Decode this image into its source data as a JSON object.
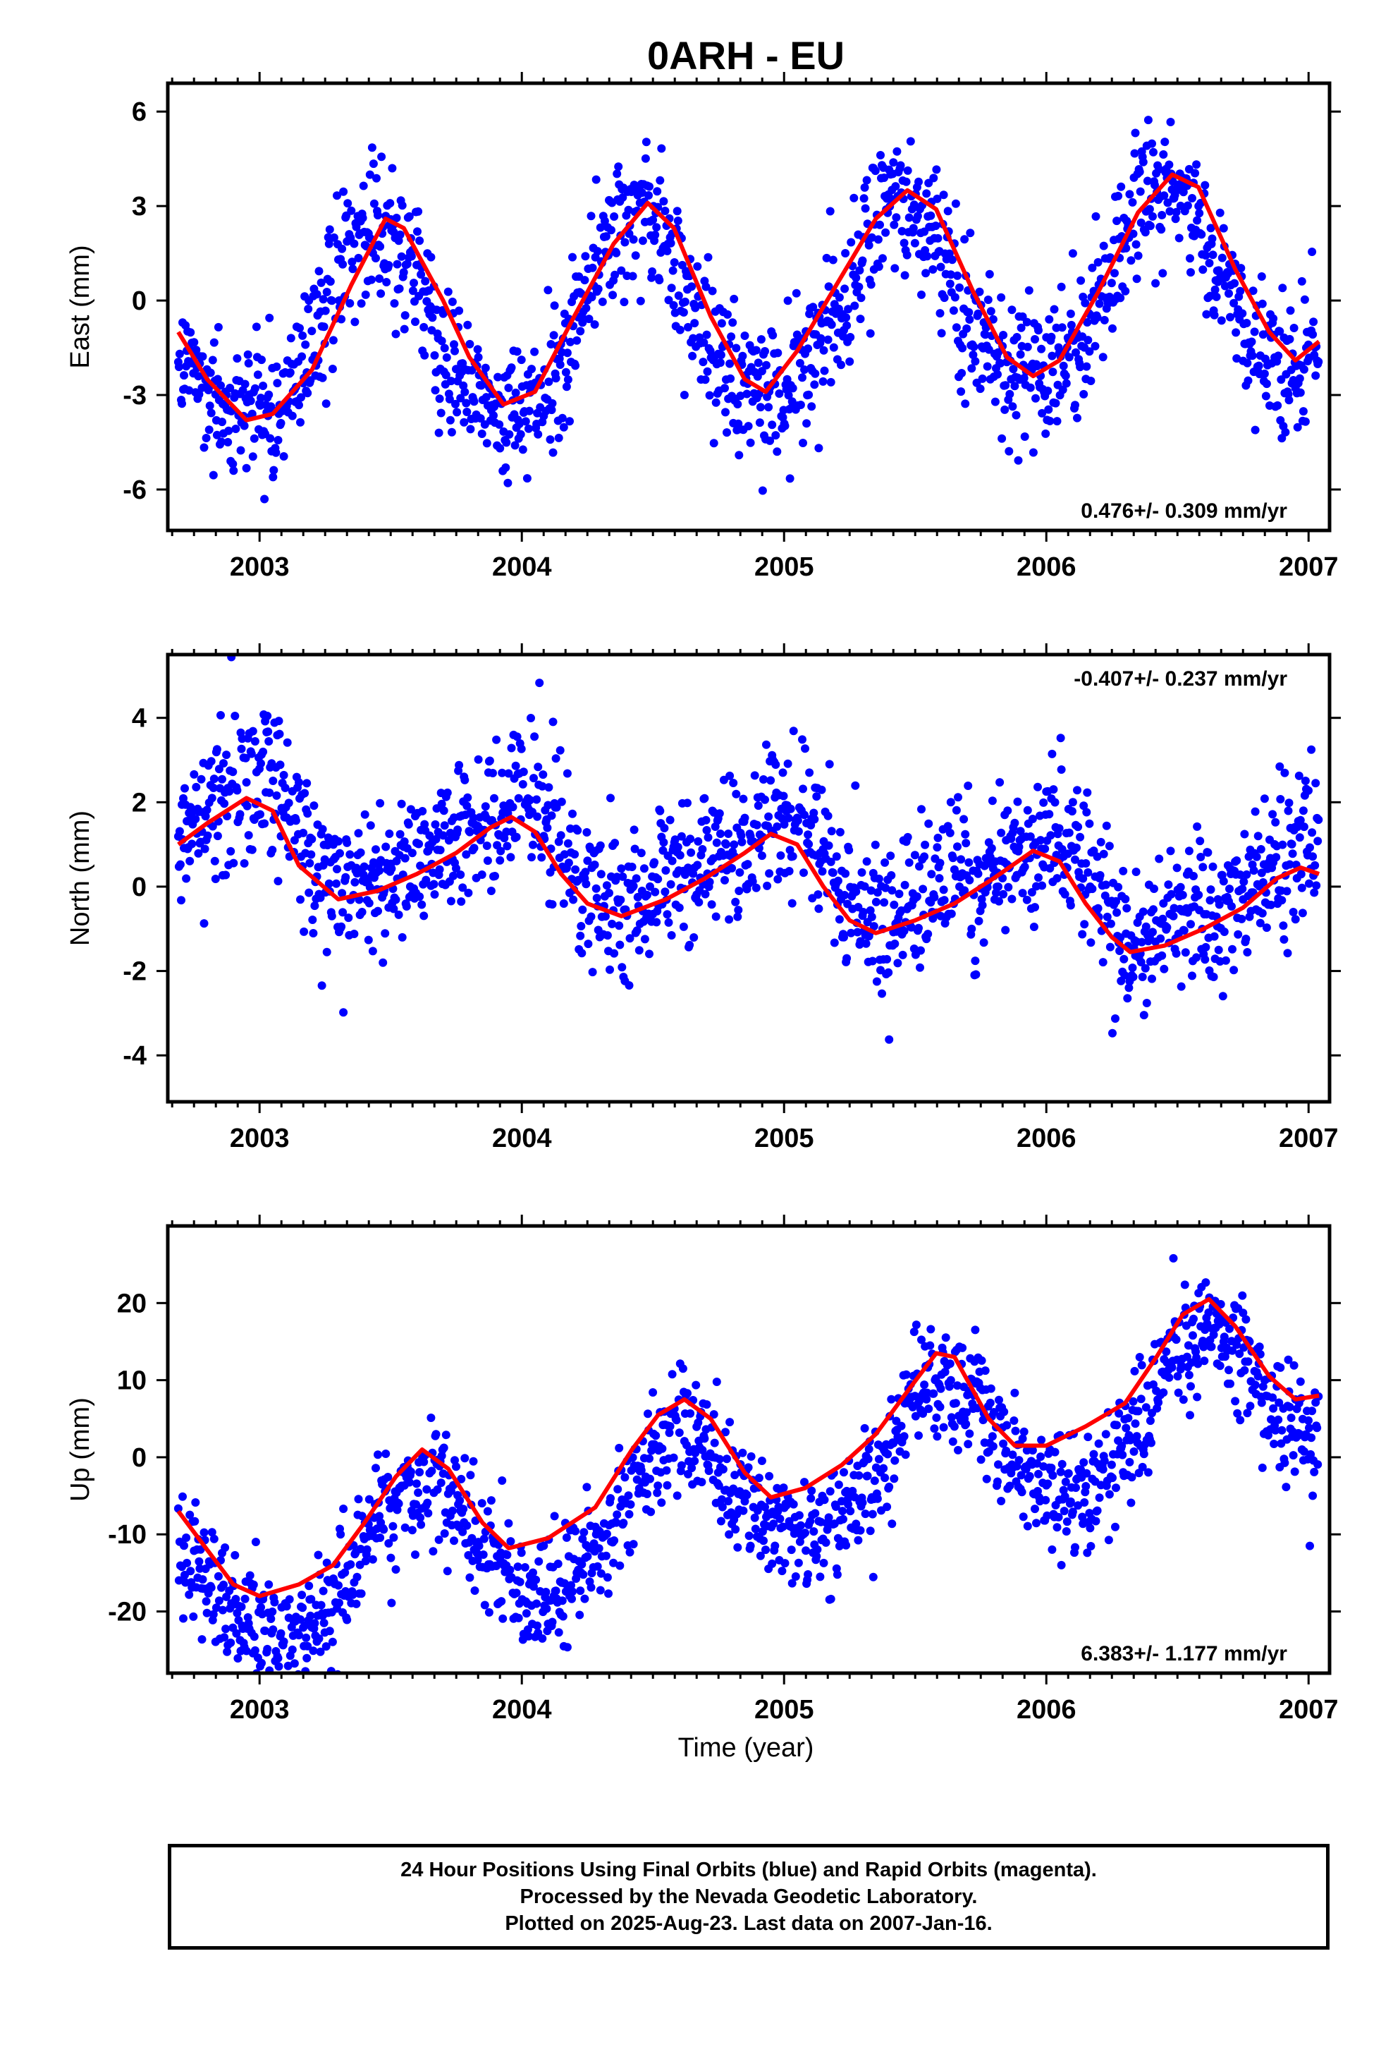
{
  "title": "0ARH - EU",
  "xlabel": "Time (year)",
  "footer": {
    "line1": "24 Hour Positions Using Final Orbits (blue) and Rapid Orbits (magenta).",
    "line2": "Processed by the Nevada Geodetic Laboratory.",
    "line3": "Plotted on 2025-Aug-23. Last data on 2007-Jan-16."
  },
  "colors": {
    "points": "#0000ff",
    "fit": "#ff0000",
    "frame": "#000000"
  },
  "chart_data": [
    {
      "type": "scatter",
      "name": "east",
      "ylabel": "East (mm)",
      "rate_label": "0.476+/- 0.309 mm/yr",
      "rate_position": "bottom-right",
      "xlim": [
        2002.65,
        2007.08
      ],
      "ylim": [
        -7.3,
        6.9
      ],
      "xticks": [
        2003,
        2004,
        2005,
        2006,
        2007
      ],
      "xtick_labels": [
        "2003",
        "2004",
        "2005",
        "2006",
        "2007"
      ],
      "yticks": [
        -6,
        -3,
        0,
        3,
        6
      ],
      "ytick_labels": [
        "-6",
        "-3",
        "0",
        "3",
        "6"
      ],
      "data_range": [
        2002.69,
        2007.04
      ],
      "model": {
        "rate": 0.476,
        "offset": -0.35,
        "annual_cos": -2.7,
        "annual_sin": 1.0,
        "semi_cos": 0.2,
        "semi_sin": -0.3,
        "noise": 1.15
      },
      "fit_curve": [
        [
          2002.69,
          -1.0
        ],
        [
          2002.8,
          -2.5
        ],
        [
          2002.95,
          -3.8
        ],
        [
          2003.05,
          -3.6
        ],
        [
          2003.2,
          -2.2
        ],
        [
          2003.35,
          0.5
        ],
        [
          2003.48,
          2.6
        ],
        [
          2003.55,
          2.3
        ],
        [
          2003.7,
          0.0
        ],
        [
          2003.8,
          -1.8
        ],
        [
          2003.93,
          -3.3
        ],
        [
          2004.05,
          -2.9
        ],
        [
          2004.2,
          -0.5
        ],
        [
          2004.35,
          1.8
        ],
        [
          2004.48,
          3.1
        ],
        [
          2004.58,
          2.3
        ],
        [
          2004.72,
          -0.5
        ],
        [
          2004.85,
          -2.5
        ],
        [
          2004.93,
          -2.9
        ],
        [
          2005.05,
          -1.6
        ],
        [
          2005.2,
          0.5
        ],
        [
          2005.35,
          2.6
        ],
        [
          2005.47,
          3.5
        ],
        [
          2005.58,
          2.9
        ],
        [
          2005.72,
          0.3
        ],
        [
          2005.85,
          -1.8
        ],
        [
          2005.95,
          -2.4
        ],
        [
          2006.05,
          -1.9
        ],
        [
          2006.2,
          0.3
        ],
        [
          2006.35,
          2.8
        ],
        [
          2006.48,
          4.0
        ],
        [
          2006.58,
          3.6
        ],
        [
          2006.72,
          1.0
        ],
        [
          2006.85,
          -1.0
        ],
        [
          2006.95,
          -1.9
        ],
        [
          2007.04,
          -1.3
        ]
      ]
    },
    {
      "type": "scatter",
      "name": "north",
      "ylabel": "North (mm)",
      "rate_label": "-0.407+/- 0.237 mm/yr",
      "rate_position": "top-right",
      "xlim": [
        2002.65,
        2007.08
      ],
      "ylim": [
        -5.1,
        5.5
      ],
      "xticks": [
        2003,
        2004,
        2005,
        2006,
        2007
      ],
      "xtick_labels": [
        "2003",
        "2004",
        "2005",
        "2006",
        "2007"
      ],
      "yticks": [
        -4,
        -2,
        0,
        2,
        4
      ],
      "ytick_labels": [
        "-4",
        "-2",
        "0",
        "2",
        "4"
      ],
      "data_range": [
        2002.69,
        2007.04
      ],
      "model": {
        "rate": -0.407,
        "offset": 0.45,
        "annual_cos": 0.9,
        "annual_sin": -0.4,
        "semi_cos": 0.3,
        "semi_sin": 0.2,
        "noise": 0.9
      },
      "fit_curve": [
        [
          2002.69,
          1.0
        ],
        [
          2002.8,
          1.5
        ],
        [
          2002.95,
          2.1
        ],
        [
          2003.05,
          1.8
        ],
        [
          2003.15,
          0.5
        ],
        [
          2003.3,
          -0.3
        ],
        [
          2003.45,
          -0.1
        ],
        [
          2003.6,
          0.3
        ],
        [
          2003.75,
          0.8
        ],
        [
          2003.88,
          1.4
        ],
        [
          2003.96,
          1.65
        ],
        [
          2004.05,
          1.3
        ],
        [
          2004.15,
          0.3
        ],
        [
          2004.25,
          -0.4
        ],
        [
          2004.38,
          -0.7
        ],
        [
          2004.55,
          -0.3
        ],
        [
          2004.7,
          0.2
        ],
        [
          2004.85,
          0.8
        ],
        [
          2004.95,
          1.25
        ],
        [
          2005.05,
          1.0
        ],
        [
          2005.15,
          0.0
        ],
        [
          2005.25,
          -0.8
        ],
        [
          2005.35,
          -1.1
        ],
        [
          2005.5,
          -0.8
        ],
        [
          2005.65,
          -0.4
        ],
        [
          2005.8,
          0.2
        ],
        [
          2005.95,
          0.85
        ],
        [
          2006.05,
          0.6
        ],
        [
          2006.15,
          -0.4
        ],
        [
          2006.25,
          -1.2
        ],
        [
          2006.32,
          -1.55
        ],
        [
          2006.45,
          -1.4
        ],
        [
          2006.6,
          -1.0
        ],
        [
          2006.75,
          -0.5
        ],
        [
          2006.88,
          0.2
        ],
        [
          2006.97,
          0.45
        ],
        [
          2007.04,
          0.3
        ]
      ]
    },
    {
      "type": "scatter",
      "name": "up",
      "ylabel": "Up (mm)",
      "rate_label": "6.383+/- 1.177 mm/yr",
      "rate_position": "bottom-right",
      "xlim": [
        2002.65,
        2007.08
      ],
      "ylim": [
        -28,
        30
      ],
      "xticks": [
        2003,
        2004,
        2005,
        2006,
        2007
      ],
      "xtick_labels": [
        "2003",
        "2004",
        "2005",
        "2006",
        "2007"
      ],
      "yticks": [
        -20,
        -10,
        0,
        10,
        20
      ],
      "ytick_labels": [
        "-20",
        "-10",
        "0",
        "10",
        "20"
      ],
      "data_range": [
        2002.69,
        2007.04
      ],
      "model": {
        "rate": 6.383,
        "offset": -3.5,
        "annual_cos": -7.0,
        "annual_sin": -5.0,
        "semi_cos": 0.5,
        "semi_sin": 1.0,
        "noise": 4.0
      },
      "fit_curve": [
        [
          2002.69,
          -7.0
        ],
        [
          2002.8,
          -12.0
        ],
        [
          2002.9,
          -16.5
        ],
        [
          2003.0,
          -18.0
        ],
        [
          2003.15,
          -16.5
        ],
        [
          2003.28,
          -14.0
        ],
        [
          2003.4,
          -8.5
        ],
        [
          2003.52,
          -2.5
        ],
        [
          2003.62,
          1.0
        ],
        [
          2003.72,
          -1.5
        ],
        [
          2003.85,
          -8.5
        ],
        [
          2003.95,
          -11.8
        ],
        [
          2004.1,
          -10.5
        ],
        [
          2004.28,
          -6.5
        ],
        [
          2004.42,
          1.0
        ],
        [
          2004.52,
          5.5
        ],
        [
          2004.62,
          7.5
        ],
        [
          2004.72,
          5.0
        ],
        [
          2004.85,
          -2.0
        ],
        [
          2004.95,
          -5.2
        ],
        [
          2005.08,
          -4.0
        ],
        [
          2005.22,
          -1.0
        ],
        [
          2005.35,
          3.0
        ],
        [
          2005.48,
          9.0
        ],
        [
          2005.58,
          13.5
        ],
        [
          2005.65,
          13.0
        ],
        [
          2005.78,
          5.0
        ],
        [
          2005.88,
          1.5
        ],
        [
          2006.0,
          1.5
        ],
        [
          2006.15,
          4.0
        ],
        [
          2006.3,
          7.0
        ],
        [
          2006.42,
          13.0
        ],
        [
          2006.52,
          18.5
        ],
        [
          2006.62,
          20.5
        ],
        [
          2006.72,
          17.0
        ],
        [
          2006.85,
          10.5
        ],
        [
          2006.95,
          7.5
        ],
        [
          2007.04,
          8.0
        ]
      ]
    }
  ]
}
